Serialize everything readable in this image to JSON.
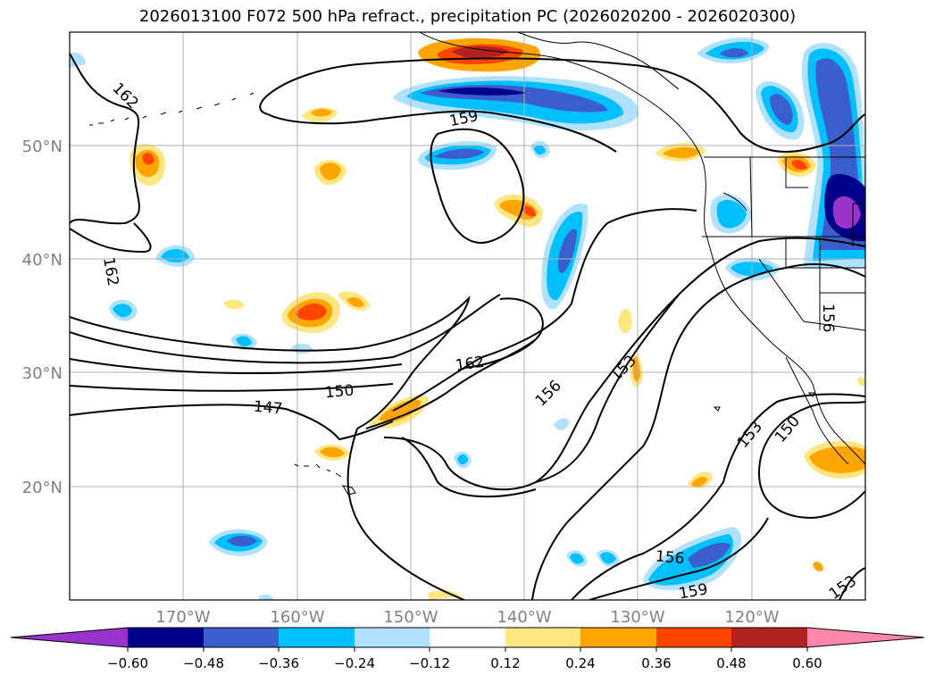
{
  "title": "2026013100 F072 500 hPa refract., precipitation PC (2026020200 - 2026020300)",
  "lat_labels": [
    "50°N",
    "40°N",
    "30°N",
    "20°N"
  ],
  "lon_labels": [
    "170°W",
    "160°W",
    "150°W",
    "140°W",
    "130°W",
    "120°W"
  ],
  "contour_labels": [
    "162",
    "162",
    "159",
    "162",
    "156",
    "153",
    "150",
    "147",
    "153",
    "150",
    "156",
    "159",
    "153",
    "156"
  ],
  "colorbar": {
    "ticks": [
      "−0.60",
      "−0.48",
      "−0.36",
      "−0.24",
      "−0.12",
      "0.12",
      "0.24",
      "0.36",
      "0.48",
      "0.60"
    ],
    "colors": [
      "#9933cc",
      "#00008b",
      "#3a5fcd",
      "#00bfff",
      "#b0e2ff",
      "#ffffff",
      "#ffe680",
      "#ffa500",
      "#ff4500",
      "#b22222",
      "#ff88aa"
    ]
  },
  "colors": {
    "neg_light": "#b0e2ff",
    "neg_mid": "#00bfff",
    "neg_strong": "#3a5fcd",
    "neg_deep": "#00008b",
    "neg_extreme": "#9933cc",
    "pos_light": "#ffe680",
    "pos_mid": "#ffa500",
    "pos_strong": "#ff4500",
    "pos_deep": "#b22222"
  }
}
